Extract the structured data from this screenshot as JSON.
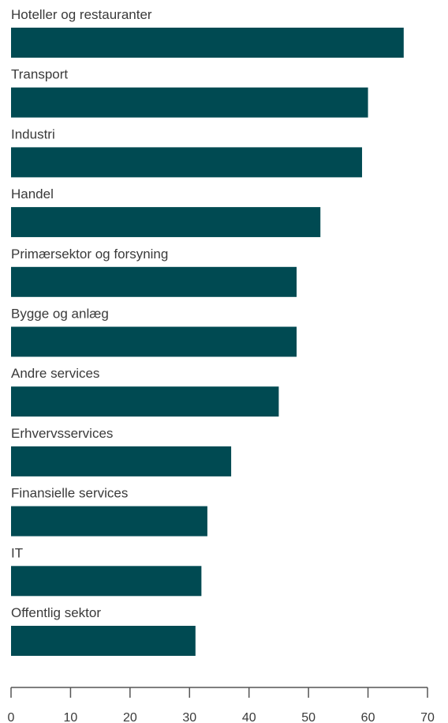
{
  "chart_data": {
    "type": "bar",
    "orientation": "horizontal",
    "categories": [
      "Hoteller og restauranter",
      "Transport",
      "Industri",
      "Handel",
      "Primærsektor og forsyning",
      "Bygge og anlæg",
      "Andre services",
      "Erhvervsservices",
      "Finansielle services",
      "IT",
      "Offentlig sektor"
    ],
    "values": [
      66,
      60,
      59,
      52,
      48,
      48,
      45,
      37,
      33,
      32,
      31
    ],
    "xlim": [
      0,
      70
    ],
    "xticks": [
      0,
      10,
      20,
      30,
      40,
      50,
      60,
      70
    ],
    "title": "",
    "xlabel": "",
    "ylabel": "",
    "grid": false,
    "bar_color": "#004a52",
    "axis_color": "#555555",
    "text_color": "#3a3a3a"
  }
}
